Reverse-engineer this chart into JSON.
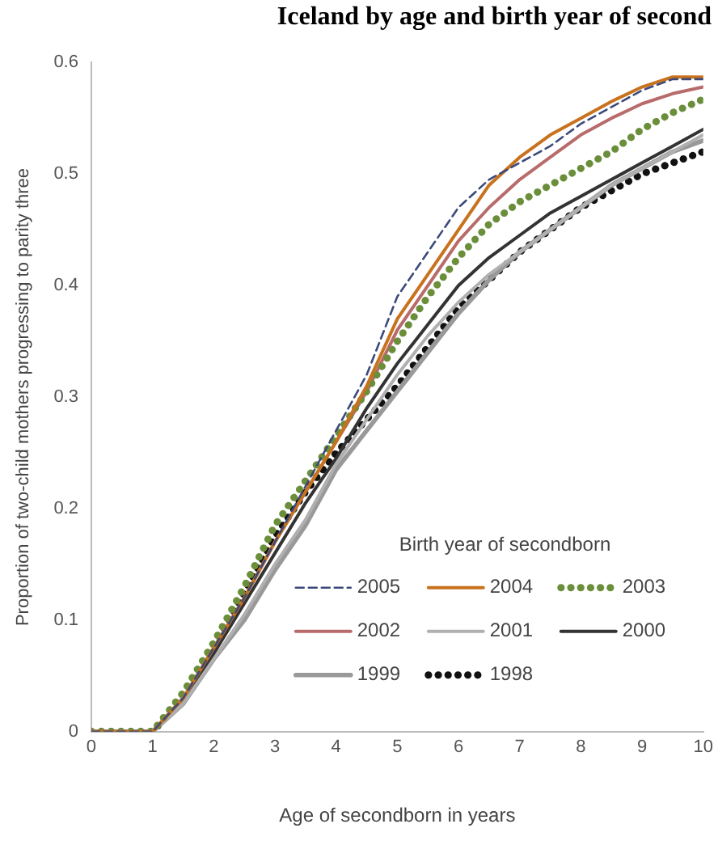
{
  "chart_data": {
    "type": "line",
    "title": "Iceland by age and birth year of second",
    "xlabel": "Age of secondborn in years",
    "ylabel": "Proportion of two-child mothers progressing to parity three",
    "legend_title": "Birth year of secondborn",
    "legend": "bottom right",
    "grid": false,
    "marker": "none",
    "x": [
      0,
      0.5,
      1,
      1.5,
      2,
      2.5,
      3,
      3.5,
      4,
      4.5,
      5,
      5.5,
      6,
      6.5,
      7,
      7.5,
      8,
      8.5,
      9,
      9.5,
      10
    ],
    "xlim": [
      0,
      10
    ],
    "xticks": [
      0,
      1,
      2,
      3,
      4,
      5,
      6,
      7,
      8,
      9,
      10
    ],
    "ylim": [
      0,
      0.6
    ],
    "yticks": [
      0,
      0.1,
      0.2,
      0.3,
      0.4,
      0.5,
      0.6
    ],
    "series": [
      {
        "name": "2005",
        "color": "#3b4a7a",
        "line_style": "dashed",
        "values": [
          0,
          0,
          0,
          0.03,
          0.075,
          0.12,
          0.17,
          0.22,
          0.27,
          0.32,
          0.39,
          0.43,
          0.47,
          0.495,
          0.51,
          0.525,
          0.545,
          0.56,
          0.575,
          0.585,
          0.585
        ]
      },
      {
        "name": "2004",
        "color": "#c8721e",
        "line_style": "solid",
        "values": [
          0,
          0,
          0,
          0.03,
          0.075,
          0.12,
          0.17,
          0.215,
          0.26,
          0.31,
          0.37,
          0.41,
          0.45,
          0.49,
          0.515,
          0.535,
          0.55,
          0.565,
          0.578,
          0.587,
          0.587
        ]
      },
      {
        "name": "2003",
        "color": "#6b8e3a",
        "line_style": "dotted",
        "values": [
          0,
          0,
          0,
          0.035,
          0.08,
          0.13,
          0.185,
          0.225,
          0.265,
          0.305,
          0.35,
          0.39,
          0.425,
          0.455,
          0.475,
          0.49,
          0.505,
          0.52,
          0.54,
          0.555,
          0.567
        ]
      },
      {
        "name": "2002",
        "color": "#b86b6b",
        "line_style": "solid",
        "values": [
          0,
          0,
          0,
          0.03,
          0.075,
          0.12,
          0.17,
          0.215,
          0.26,
          0.305,
          0.36,
          0.4,
          0.44,
          0.47,
          0.495,
          0.515,
          0.535,
          0.55,
          0.563,
          0.572,
          0.578
        ]
      },
      {
        "name": "2001",
        "color": "#b0b0b0",
        "line_style": "solid",
        "values": [
          0,
          0,
          0,
          0.025,
          0.065,
          0.105,
          0.15,
          0.19,
          0.24,
          0.28,
          0.32,
          0.355,
          0.385,
          0.41,
          0.43,
          0.45,
          0.47,
          0.49,
          0.505,
          0.52,
          0.535
        ]
      },
      {
        "name": "2000",
        "color": "#333333",
        "line_style": "solid",
        "values": [
          0,
          0,
          0,
          0.03,
          0.07,
          0.115,
          0.16,
          0.205,
          0.245,
          0.29,
          0.33,
          0.365,
          0.4,
          0.425,
          0.445,
          0.465,
          0.48,
          0.495,
          0.51,
          0.525,
          0.54
        ]
      },
      {
        "name": "1999",
        "color": "#999999",
        "line_style": "solid",
        "values": [
          0,
          0,
          0,
          0.025,
          0.065,
          0.1,
          0.145,
          0.185,
          0.235,
          0.27,
          0.305,
          0.34,
          0.375,
          0.405,
          0.43,
          0.45,
          0.47,
          0.49,
          0.505,
          0.52,
          0.53
        ]
      },
      {
        "name": "1998",
        "color": "#111111",
        "line_style": "dotted",
        "values": [
          0,
          0,
          0,
          0.03,
          0.075,
          0.125,
          0.175,
          0.215,
          0.25,
          0.28,
          0.31,
          0.345,
          0.38,
          0.405,
          0.43,
          0.45,
          0.47,
          0.485,
          0.5,
          0.51,
          0.52
        ]
      }
    ]
  }
}
